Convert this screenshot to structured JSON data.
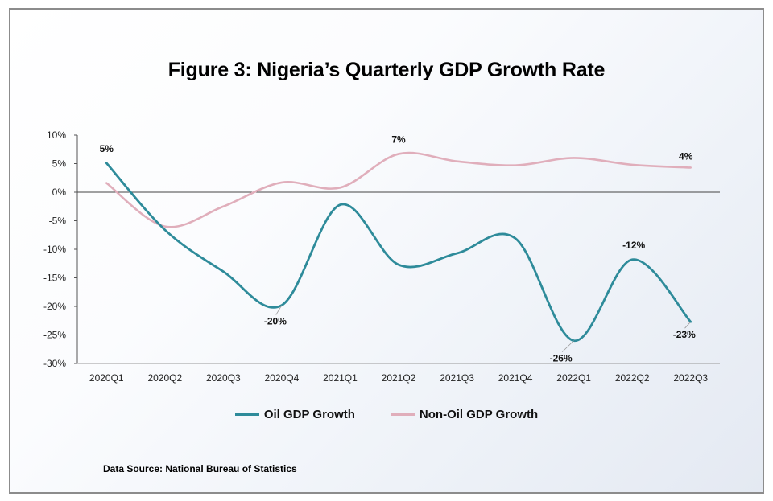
{
  "chart_data": {
    "type": "line",
    "title": "Figure 3: Nigeria’s Quarterly GDP Growth Rate",
    "categories": [
      "2020Q1",
      "2020Q2",
      "2020Q3",
      "2020Q4",
      "2021Q1",
      "2021Q2",
      "2021Q3",
      "2021Q4",
      "2022Q1",
      "2022Q2",
      "2022Q3"
    ],
    "ylim": [
      -30,
      10
    ],
    "yticks": [
      10,
      5,
      0,
      -5,
      -10,
      -15,
      -20,
      -25,
      -30
    ],
    "ytick_labels": [
      "10%",
      "5%",
      "0%",
      "-5%",
      "-10%",
      "-15%",
      "-20%",
      "-25%",
      "-30%"
    ],
    "grid": false,
    "legend_position": "bottom",
    "series": [
      {
        "name": "Oil GDP Growth",
        "color": "#2e8b9a",
        "values": [
          5.1,
          -6.6,
          -13.9,
          -19.8,
          -2.2,
          -12.7,
          -10.7,
          -8.1,
          -26.0,
          -11.8,
          -22.7
        ],
        "data_labels": [
          {
            "index": 0,
            "text": "5%"
          },
          {
            "index": 3,
            "text": "-20%"
          },
          {
            "index": 8,
            "text": "-26%"
          },
          {
            "index": 9,
            "text": "-12%"
          },
          {
            "index": 10,
            "text": "-23%"
          }
        ]
      },
      {
        "name": "Non-Oil GDP Growth",
        "color": "#e0aebb",
        "values": [
          1.6,
          -6.0,
          -2.5,
          1.7,
          0.8,
          6.7,
          5.4,
          4.7,
          6.0,
          4.8,
          4.3
        ],
        "data_labels": [
          {
            "index": 5,
            "text": "7%"
          },
          {
            "index": 10,
            "text": "4%"
          }
        ]
      }
    ]
  },
  "source_text": "Data Source: National Bureau of Statistics"
}
